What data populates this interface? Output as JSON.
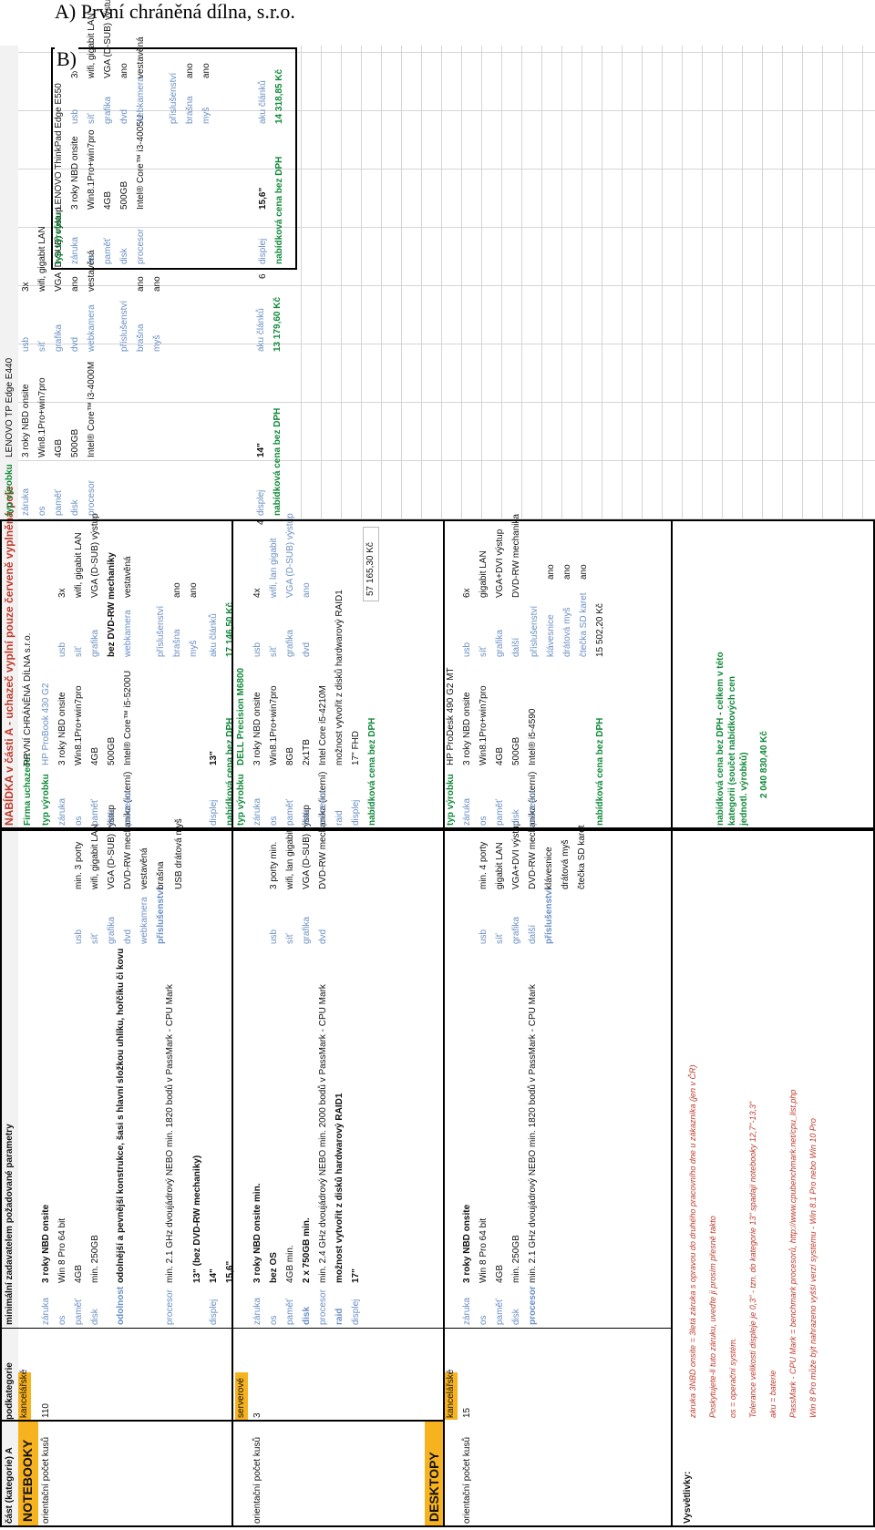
{
  "labels": {
    "a": "A)  První chráněná dílna, s.r.o.",
    "b": "B)"
  },
  "req": {
    "col1": "část (kategorie) A",
    "col2": "podkategorie",
    "col3": "minimální zadavatelem požadované parametry",
    "notebooky": "NOTEBOOKY",
    "desktopy": "DESKTOPY",
    "count": "orientační počet kusů",
    "nb_office": {
      "sub": "kancelářské",
      "qty": "110",
      "warranty_k": "záruka",
      "warranty_v": "3 roky NBD onsite",
      "os_k": "os",
      "os_v": "Win 8 Pro 64 bit",
      "mem_k": "paměť",
      "mem_v": "4GB",
      "disk_k": "disk",
      "disk_v": "min. 250GB",
      "dur_k": "odolnost",
      "dur_v": "odolnější a pevnější konstrukce, šasi s hlavní složkou uhlíku, hořčíku či kovu",
      "cpu_k": "procesor",
      "cpu_v": "min. 2.1 GHz dvoujádrový NEBO min. 1820 bodů v PassMark - CPU Mark",
      "disp_k": "displej",
      "disp_v1": "13\" (bez DVD-RW mechaniky)",
      "disp_v2": "14\"",
      "disp_v3": "15,6\"",
      "usb_k": "usb",
      "usb_v": "min. 3 porty",
      "net_k": "síť",
      "net_v": "wifi, gigabit LAN",
      "gfx_k": "grafika",
      "gfx_v": "VGA (D-SUB) výstup",
      "dvd_k": "dvd",
      "dvd_v": "DVD-RW mechanika (interní)",
      "cam_k": "webkamera",
      "cam_v": "vestavěná",
      "acc_k": "příslušenství",
      "acc_v1": "brašna",
      "acc_v2": "USB drátová myš"
    },
    "nb_server": {
      "sub": "serverové",
      "qty": "3",
      "warranty_v": "3 roky NBD onsite min.",
      "os_v": "bez OS",
      "mem_v": "4GB min.",
      "disk_v": "2 x 750GB min.",
      "cpu_v": "min. 2.4 GHz dvoujádrový NEBO min. 2000 bodů v PassMark - CPU Mark",
      "raid_k": "raid",
      "raid_v": "možnost vytvořit z disků hardwarový RAID1",
      "disp_v": "17\"",
      "usb_v": "3 porty min.",
      "net_v": "wifi, lan gigabit",
      "gfx_v": "VGA (D-SUB) výstup",
      "dvd_v": "DVD-RW mechanika (interní)"
    },
    "dt_office": {
      "sub": "kancelářské",
      "qty": "15",
      "warranty_v": "3 roky NBD onsite",
      "os_v": "Win 8 Pro 64 bit",
      "mem_v": "4GB",
      "disk_v": "min. 250GB",
      "cpu_v": "min. 2.1 GHz dvoujádrový NEBO min. 1820 bodů v PassMark - CPU Mark",
      "usb_v": "min. 4 porty",
      "net_v": "gigabit LAN",
      "gfx_v": "VGA+DVI výstup",
      "other_k": "další",
      "other_v": "DVD-RW mechanika (interní)",
      "acc_v1": "klávesnice",
      "acc_v2": "drátová myš",
      "acc_v3": "čtečka SD karet"
    },
    "notes_k": "Vysvětlivky:",
    "notes": [
      "záruka 3NBD onsite = 3letá záruka s opravou do druhého pracovního dne u zákazníka (jen v ČR)",
      "Poskytujete-li tuto záruku, uveďte ji prosím přesně takto",
      "os = operační systém.",
      "Tolerance velikosti displeje je 0,3\" - tzn. do kategorie 13\" spadají notebooky 12,7\"-13,3\"",
      "aku = baterie",
      "PassMark - CPU Mark = benchmark procesorů, http://www.cpubenchmark.net/cpu_list.php",
      "Win 8 Pro může být nahrazeno vyšší verzí systému - Win 8.1 Pro nebo Win 10 Pro"
    ]
  },
  "offer": {
    "title": "NABÍDKA v části A - uchazeč vyplní pouze červeně vyplněná pole",
    "firm_k": "Firma uchazeče:",
    "firm_v": "PRVNÍ CHRÁNĚNÁ DÍLNA s.r.o.",
    "type_k": "typ výrobku",
    "price_k": "nabídková cena bez DPH",
    "n1": {
      "type": "HP ProBook 430 G2",
      "warranty": "3 roky NBD onsite",
      "os": "Win8.1Pro+win7pro",
      "mem": "4GB",
      "disk": "500GB",
      "cpu": "Intel® Core™ i5-5200U",
      "disp": "13\"",
      "usb": "3x",
      "net": "wifi, gigabit LAN",
      "gfx": "VGA (D-SUB) výstup",
      "dvd_k": "bez DVD-RW mechaniky",
      "cam": "vestavěná",
      "acc": "příslušenství",
      "bag": "brašna",
      "bag_v": "ano",
      "mouse": "myš",
      "mouse_v": "ano",
      "aku": "aku článků",
      "aku_v": "",
      "price": "17 146,50 Kč"
    },
    "n2": {
      "type": "LENOVO TP Edge E440",
      "warranty": "3 roky NBD onsite",
      "os": "Win8.1Pro+win7pro",
      "mem": "4GB",
      "disk": "500GB",
      "cpu": "Intel® Core™ i3-4000M",
      "disp": "14\"",
      "usb": "3x",
      "net": "wifi, gigabit LAN",
      "gfx": "VGA (D-SUB) výstup",
      "dvd": "ano",
      "cam": "vestavěná",
      "bag_v": "ano",
      "mouse_v": "ano",
      "aku_v": "4",
      "price": "13 179,60 Kč"
    },
    "n3": {
      "type": "LENOVO ThinkPad Edge E550",
      "warranty": "3 roky NBD onsite",
      "os": "Win8.1Pro+win7pro",
      "mem": "4GB",
      "disk": "500GB",
      "cpu": "Intel® Core™ i3-4005U",
      "disp": "15,6\"",
      "usb": "3x",
      "net": "wifi, gigabit LAN",
      "gfx": "VGA (D-SUB) výstup",
      "dvd": "ano",
      "cam": "vestavěná",
      "bag_v": "ano",
      "mouse_v": "ano",
      "aku_v": "6",
      "price": "14 318,85 Kč"
    },
    "s1": {
      "type": "DELL Precision M6800",
      "warranty": "3 roky NBD onsite",
      "os": "Win8.1Pro+win7pro",
      "mem": "8GB",
      "disk": "2x1TB",
      "cpu": "Intel Core i5-4210M",
      "raid": "možnost vytvořit z disků hardwarový RAID1",
      "disp": "17\" FHD",
      "usb": "4x",
      "net": "wifi, lan gigabit",
      "gfx": "VGA (D-SUB) výstup",
      "dvd": "ano",
      "price": "57 165,30 Kč"
    },
    "d1": {
      "type": "HP ProDesk 490 G2 MT",
      "warranty": "3 roky NBD onsite",
      "os": "Win8.1Pro+win7pro",
      "mem": "4GB",
      "disk": "500GB",
      "cpu": "Intel® i5-4590",
      "usb": "6x",
      "net": "gigabit LAN",
      "gfx": "VGA+DVI výstup",
      "other": "DVD-RW mechanika",
      "acc": "příslušenství",
      "kb": "klávesnice",
      "kb_v": "ano",
      "mouse": "drátová myš",
      "mouse_v": "ano",
      "sd": "čtečka SD karet",
      "sd_v": "ano",
      "price": "15 502,20 Kč"
    },
    "total_k": "nabídková cena bez DPH - celkem v této kategorii (součet nabídkových cen jednotl. výrobků)",
    "total_v": "2 040 830,40 Kč"
  }
}
